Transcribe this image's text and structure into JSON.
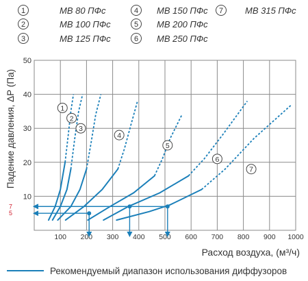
{
  "legend": {
    "items": [
      {
        "num": "1",
        "label": "МВ 80 ПФс"
      },
      {
        "num": "2",
        "label": "МВ 100 ПФс"
      },
      {
        "num": "3",
        "label": "МВ 125 ПФс"
      },
      {
        "num": "4",
        "label": "МВ 150 ПФс"
      },
      {
        "num": "5",
        "label": "МВ 200 ПФс"
      },
      {
        "num": "6",
        "label": "МВ 250 ПФс"
      },
      {
        "num": "7",
        "label": "МВ 315 ПФс"
      }
    ]
  },
  "axes": {
    "ylabel": "Падение давления, ΔР (Па)",
    "xlabel": "Расход воздуха, (м³/ч)",
    "y_marks": [
      {
        "value": 7,
        "label": "7"
      },
      {
        "value": 5,
        "label": "5"
      }
    ]
  },
  "footer": {
    "recommended_label": "Рекомендуемый диапазон использования диффузоров"
  },
  "colors": {
    "curve": "#1a7fb9",
    "grid": "#8a8a8a",
    "mark_label": "#d02030",
    "text": "#333333"
  },
  "chart_data": {
    "type": "line",
    "xlim": [
      0,
      1000
    ],
    "ylim": [
      0,
      50
    ],
    "x_ticks": [
      100,
      200,
      300,
      400,
      500,
      600,
      700,
      800,
      900,
      1000
    ],
    "y_ticks": [
      0,
      10,
      20,
      30,
      40,
      50
    ],
    "grid": true,
    "series": [
      {
        "name": "1",
        "solid": [
          [
            55,
            3
          ],
          [
            80,
            7
          ],
          [
            100,
            12
          ],
          [
            118,
            20
          ]
        ],
        "dashed": [
          [
            118,
            20
          ],
          [
            130,
            28
          ],
          [
            140,
            35
          ],
          [
            150,
            40
          ]
        ],
        "label_at": [
          108,
          36
        ]
      },
      {
        "name": "2",
        "solid": [
          [
            70,
            3
          ],
          [
            100,
            7
          ],
          [
            125,
            12
          ],
          [
            140,
            18
          ]
        ],
        "dashed": [
          [
            140,
            18
          ],
          [
            155,
            27
          ],
          [
            170,
            35
          ],
          [
            185,
            40
          ]
        ],
        "label_at": [
          143,
          33
        ]
      },
      {
        "name": "3",
        "solid": [
          [
            90,
            3
          ],
          [
            140,
            7
          ],
          [
            175,
            12
          ],
          [
            200,
            18
          ]
        ],
        "dashed": [
          [
            200,
            18
          ],
          [
            218,
            26
          ],
          [
            235,
            34
          ],
          [
            255,
            40
          ]
        ],
        "label_at": [
          178,
          30
        ]
      },
      {
        "name": "4",
        "solid": [
          [
            120,
            3
          ],
          [
            190,
            7
          ],
          [
            260,
            12
          ],
          [
            320,
            18
          ]
        ],
        "dashed": [
          [
            320,
            18
          ],
          [
            345,
            24
          ],
          [
            370,
            31
          ],
          [
            395,
            38
          ]
        ],
        "label_at": [
          325,
          28
        ]
      },
      {
        "name": "5",
        "solid": [
          [
            205,
            3
          ],
          [
            290,
            7
          ],
          [
            380,
            11
          ],
          [
            460,
            16
          ]
        ],
        "dashed": [
          [
            460,
            16
          ],
          [
            490,
            21
          ],
          [
            520,
            27
          ],
          [
            565,
            34
          ]
        ],
        "label_at": [
          510,
          25
        ]
      },
      {
        "name": "6",
        "solid": [
          [
            265,
            3
          ],
          [
            360,
            7
          ],
          [
            480,
            11
          ],
          [
            590,
            16
          ]
        ],
        "dashed": [
          [
            590,
            16
          ],
          [
            650,
            21
          ],
          [
            720,
            28
          ],
          [
            815,
            38
          ]
        ],
        "label_at": [
          700,
          21
        ]
      },
      {
        "name": "7",
        "solid": [
          [
            315,
            3
          ],
          [
            440,
            5.5
          ],
          [
            520,
            7.5
          ],
          [
            640,
            12
          ]
        ],
        "dashed": [
          [
            640,
            12
          ],
          [
            730,
            18
          ],
          [
            840,
            27
          ],
          [
            985,
            37
          ]
        ],
        "label_at": [
          830,
          18
        ]
      }
    ],
    "operating_points": [
      {
        "x": 210,
        "y": 5
      },
      {
        "x": 365,
        "y": 7
      },
      {
        "x": 510,
        "y": 7
      }
    ]
  }
}
